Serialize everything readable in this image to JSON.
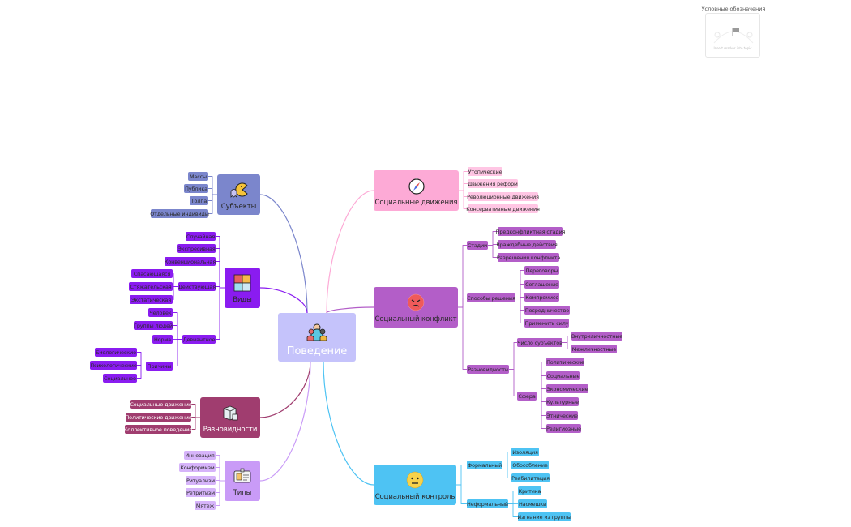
{
  "legend": {
    "title": "Условные обозначения",
    "hint": "Insert marker into topic",
    "icon": "flag-icon"
  },
  "center": {
    "label": "Поведение",
    "icon": "people-icon",
    "color": "#c5c3fb"
  },
  "branches": {
    "subjects": {
      "label": "Субъекты",
      "icon": "pacman-icon",
      "color": "#7b86cc",
      "children": [
        {
          "label": "Массы"
        },
        {
          "label": "Публика"
        },
        {
          "label": "Толпа"
        },
        {
          "label": "Отдельные индивиды"
        }
      ]
    },
    "kinds": {
      "label": "Виды",
      "icon": "puzzle-icon",
      "color": "#8a1cf0",
      "children": [
        {
          "label": "Случайная"
        },
        {
          "label": "Экспресивная"
        },
        {
          "label": "Конвенциональная"
        },
        {
          "label": "Действующая",
          "children": [
            {
              "label": "Спасающаяся"
            },
            {
              "label": "Стяжательская"
            },
            {
              "label": "Экстатическая"
            }
          ]
        },
        {
          "label": "Девиантное",
          "children": [
            {
              "label": "Человек"
            },
            {
              "label": "Группы людей"
            },
            {
              "label": "Норма"
            },
            {
              "label": "Причины",
              "children": [
                {
                  "label": "Биологические"
                },
                {
                  "label": "Психологические"
                },
                {
                  "label": "Социальное"
                }
              ]
            }
          ]
        }
      ]
    },
    "varieties": {
      "label": "Разновидности",
      "icon": "box-icon",
      "color": "#a03d6f",
      "children": [
        {
          "label": "Социальные движения"
        },
        {
          "label": "Политические движения"
        },
        {
          "label": "Коллективное поведение"
        }
      ]
    },
    "types": {
      "label": "Типы",
      "icon": "id-card-icon",
      "color": "#c99bf7",
      "children": [
        {
          "label": "Инновация"
        },
        {
          "label": "Конформизм"
        },
        {
          "label": "Ритуализм"
        },
        {
          "label": "Ретритизм"
        },
        {
          "label": "Мятеж"
        }
      ]
    },
    "movements": {
      "label": "Социальные движения",
      "icon": "compass-icon",
      "color": "#fdaad6",
      "children": [
        {
          "label": "Утопические"
        },
        {
          "label": "Движения реформ"
        },
        {
          "label": "Революционные движения"
        },
        {
          "label": "Консервативные движения"
        }
      ]
    },
    "conflict": {
      "label": "Социальный конфликт",
      "icon": "angry-face-icon",
      "color": "#b35ec8",
      "children": [
        {
          "label": "Стадии",
          "children": [
            {
              "label": "Предконфликтная стадия"
            },
            {
              "label": "Враждебные действия"
            },
            {
              "label": "Разрешения конфликта"
            }
          ]
        },
        {
          "label": "Способы решения",
          "children": [
            {
              "label": "Переговоры"
            },
            {
              "label": "Соглашение"
            },
            {
              "label": "Компромисс"
            },
            {
              "label": "Посредничество"
            },
            {
              "label": "Применить силу"
            }
          ]
        },
        {
          "label": "Разновидности",
          "children": [
            {
              "label": "Число субъектов",
              "children": [
                {
                  "label": "Внутриличностные"
                },
                {
                  "label": "Межличностные"
                }
              ]
            },
            {
              "label": "Сфера",
              "children": [
                {
                  "label": "Политические"
                },
                {
                  "label": "Социальные"
                },
                {
                  "label": "Экономические"
                },
                {
                  "label": "Культурные"
                },
                {
                  "label": "Этнические"
                },
                {
                  "label": "Религиозные"
                }
              ]
            }
          ]
        }
      ]
    },
    "control": {
      "label": "Социальный контроль",
      "icon": "neutral-face-icon",
      "color": "#4ec3f3",
      "children": [
        {
          "label": "Формальный",
          "children": [
            {
              "label": "Изоляция"
            },
            {
              "label": "Обособление"
            },
            {
              "label": "Реабилитация"
            }
          ]
        },
        {
          "label": "Неформальный",
          "children": [
            {
              "label": "Критика"
            },
            {
              "label": "Насмешки"
            },
            {
              "label": "Изгнание из группы"
            }
          ]
        }
      ]
    }
  }
}
